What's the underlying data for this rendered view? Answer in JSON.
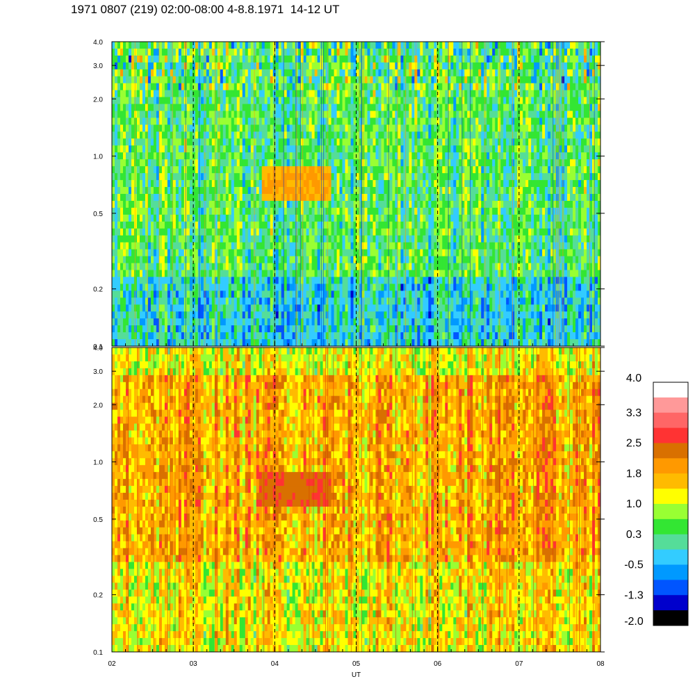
{
  "title": "1971 0807 (219) 02:00-08:00 4-8.8.1971  14-12 UT",
  "chart_data": {
    "type": "heatmap",
    "title": "1971 0807 (219) 02:00-08:00 4-8.8.1971  14-12 UT",
    "xlabel": "UT",
    "x_ticks": [
      "02",
      "03",
      "04",
      "05",
      "06",
      "07",
      "08"
    ],
    "x_range": [
      2,
      8
    ],
    "dashed_gridlines_x": [
      3,
      4,
      5,
      6,
      7
    ],
    "y_scale": "log",
    "y_range": [
      0.1,
      4.0
    ],
    "panels": [
      {
        "y_ticks": [
          "0.1",
          "0.2",
          "0.5",
          "1.0",
          "2.0",
          "3.0",
          "4.0"
        ],
        "dominant_level": "0.3",
        "enhancement": {
          "x_range": [
            3.85,
            4.7
          ],
          "y_range": [
            0.6,
            0.95
          ],
          "level": "1.8"
        }
      },
      {
        "y_ticks": [
          "0.1",
          "0.2",
          "0.5",
          "1.0",
          "2.0",
          "3.0",
          "4.0"
        ],
        "dominant_level": "1.8",
        "enhancement": {
          "x_range": [
            3.8,
            4.7
          ],
          "y_range": [
            0.6,
            0.95
          ],
          "level": "2.5"
        }
      }
    ],
    "colorbar": {
      "labels": [
        "4.0",
        "3.3",
        "2.5",
        "1.8",
        "1.0",
        "0.3",
        "-0.5",
        "-1.3",
        "-2.0"
      ],
      "colors_top_to_bottom": [
        "#ffffff",
        "#ff9999",
        "#ff6666",
        "#ff3333",
        "#d97000",
        "#ff9900",
        "#ffbb00",
        "#ffff00",
        "#99ff33",
        "#33e633",
        "#55dd99",
        "#33ccff",
        "#0099ff",
        "#0055ff",
        "#0000cc",
        "#000000"
      ]
    }
  }
}
